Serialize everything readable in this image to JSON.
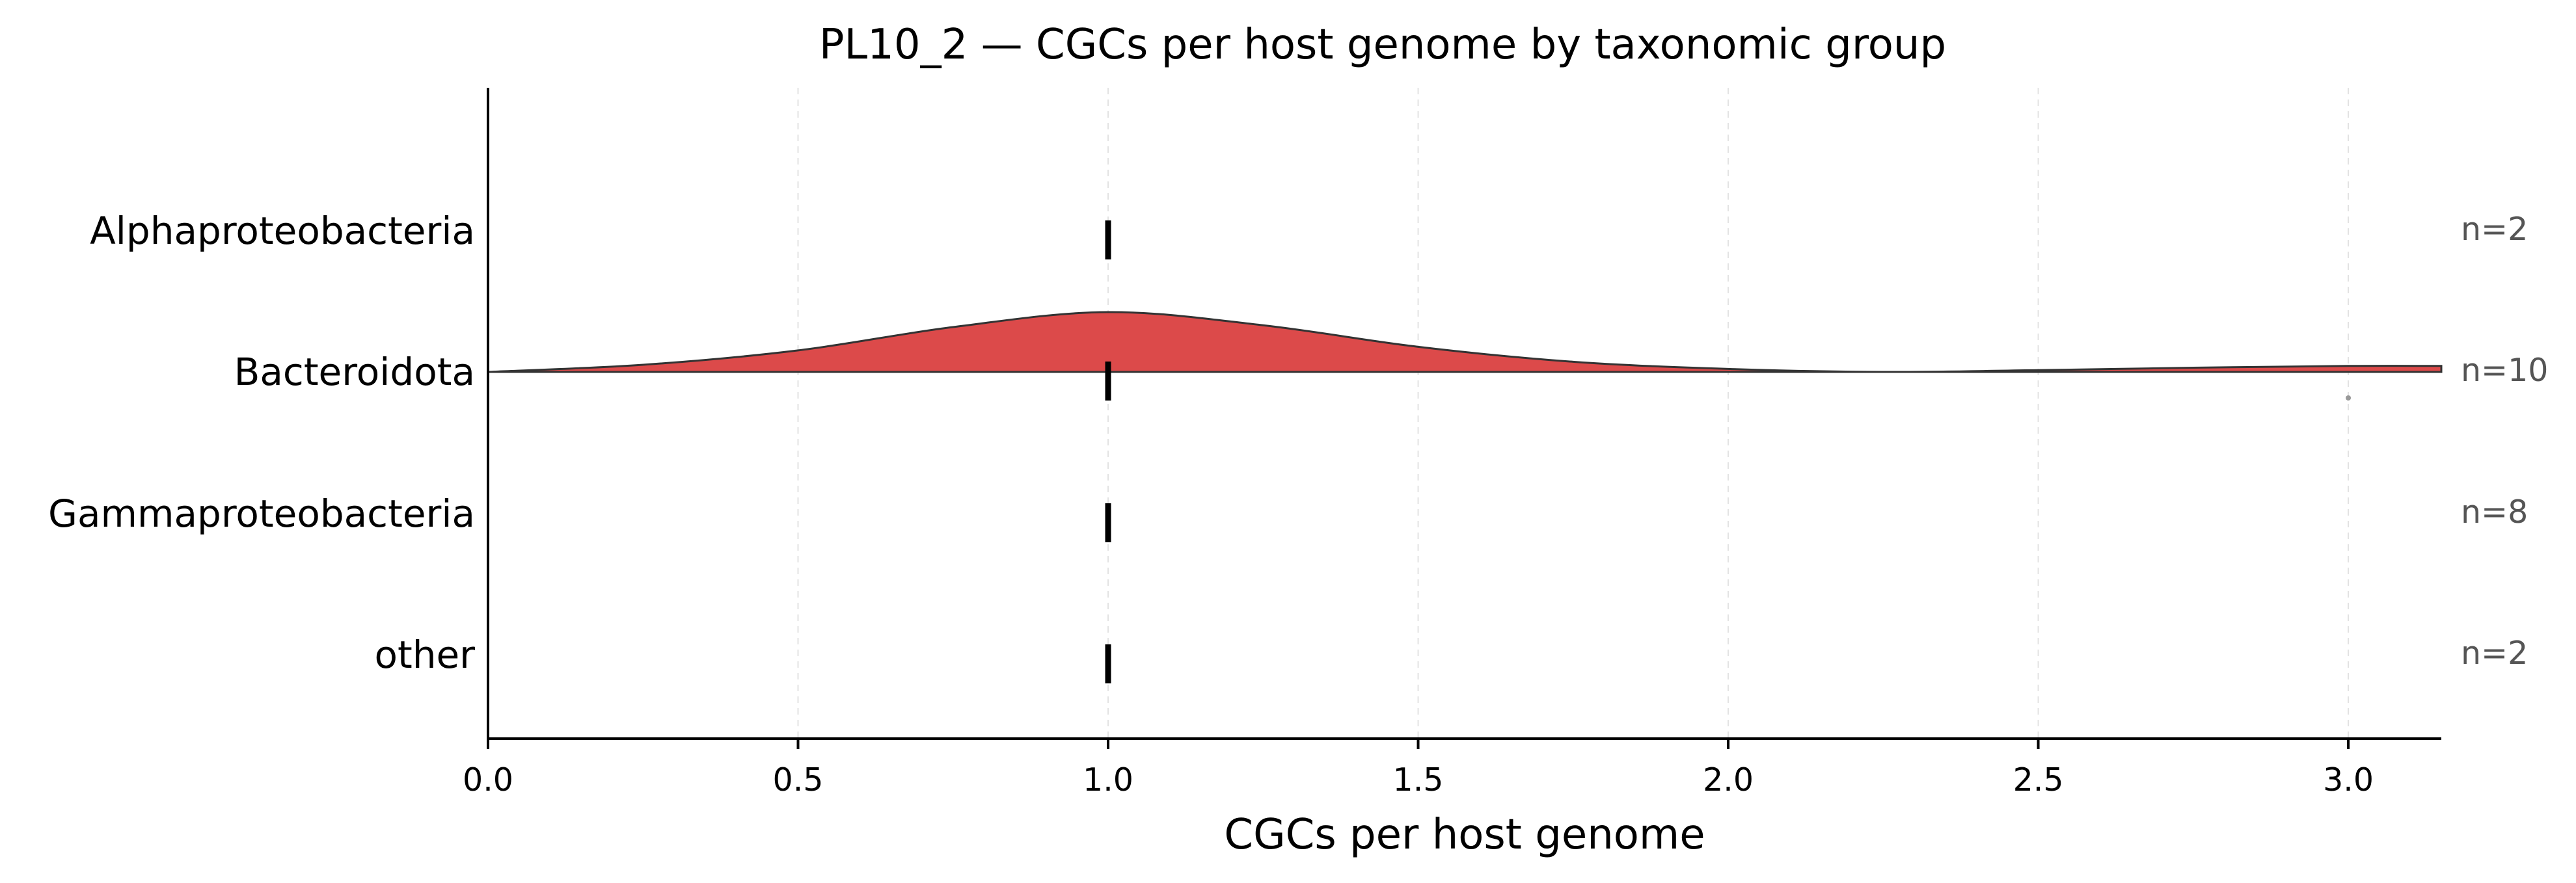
{
  "chart_data": {
    "type": "ridgeline",
    "title": "PL10_2 — CGCs per host genome by taxonomic group",
    "xlabel": "CGCs per host genome",
    "ylabel": "",
    "xlim": [
      0,
      3.15
    ],
    "xticks": [
      0.0,
      0.5,
      1.0,
      1.5,
      2.0,
      2.5,
      3.0
    ],
    "xtick_labels": [
      "0.0",
      "0.5",
      "1.0",
      "1.5",
      "2.0",
      "2.5",
      "3.0"
    ],
    "grid": "vertical, dashed, light",
    "categories": [
      "Alphaproteobacteria",
      "Bacteroidota",
      "Gammaproteobacteria",
      "other"
    ],
    "n_labels": [
      "n=2",
      "n=10",
      "n=8",
      "n=2"
    ],
    "medians": [
      1.0,
      1.0,
      1.0,
      1.0
    ],
    "outliers": [
      {
        "category": "Bacteroidota",
        "x": 3.0
      }
    ],
    "densities": [
      {
        "category": "Bacteroidota",
        "color": "#dc4a4a",
        "points": [
          [
            0.0,
            0.0
          ],
          [
            0.25,
            0.12
          ],
          [
            0.5,
            0.36
          ],
          [
            0.75,
            0.75
          ],
          [
            1.0,
            1.0
          ],
          [
            1.25,
            0.78
          ],
          [
            1.5,
            0.42
          ],
          [
            1.75,
            0.17
          ],
          [
            2.0,
            0.05
          ],
          [
            2.25,
            0.0
          ],
          [
            2.5,
            0.03
          ],
          [
            2.75,
            0.07
          ],
          [
            3.0,
            0.1
          ],
          [
            3.15,
            0.1
          ]
        ]
      }
    ]
  }
}
